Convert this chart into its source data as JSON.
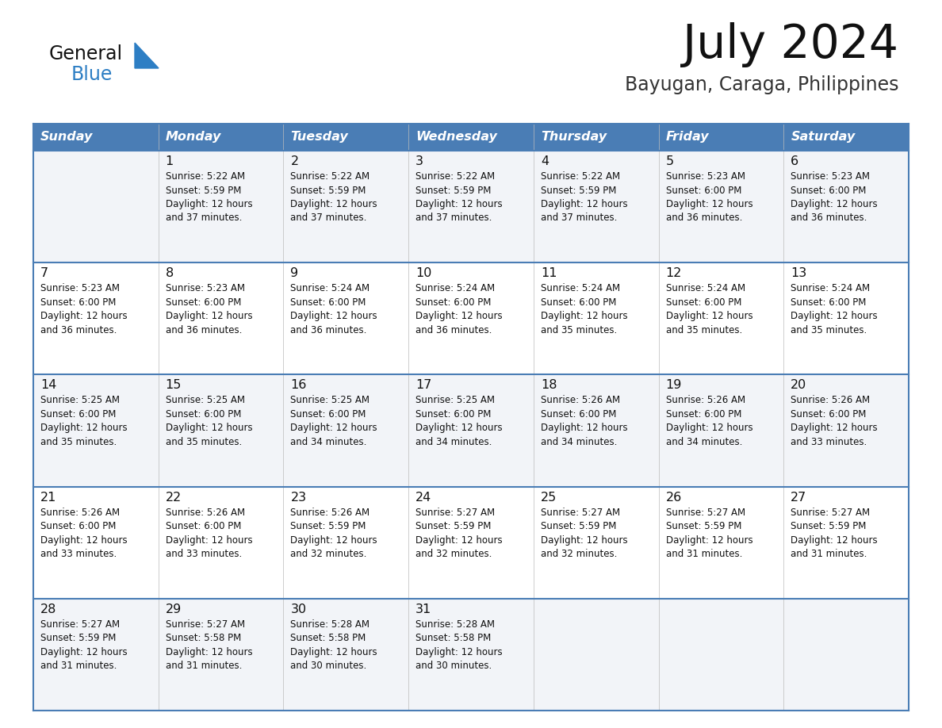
{
  "title": "July 2024",
  "subtitle": "Bayugan, Caraga, Philippines",
  "header_bg_color": "#4A7DB5",
  "header_text_color": "#FFFFFF",
  "cell_bg_light": "#F2F4F8",
  "cell_bg_white": "#FFFFFF",
  "day_names": [
    "Sunday",
    "Monday",
    "Tuesday",
    "Wednesday",
    "Thursday",
    "Friday",
    "Saturday"
  ],
  "title_color": "#111111",
  "subtitle_color": "#333333",
  "border_color": "#4A7DB5",
  "cell_text_color": "#111111",
  "day_num_color": "#111111",
  "logo_general_color": "#111111",
  "logo_blue_color": "#2D7EC4",
  "logo_triangle_color": "#2D7EC4",
  "calendar": [
    [
      "",
      "1",
      "2",
      "3",
      "4",
      "5",
      "6"
    ],
    [
      "7",
      "8",
      "9",
      "10",
      "11",
      "12",
      "13"
    ],
    [
      "14",
      "15",
      "16",
      "17",
      "18",
      "19",
      "20"
    ],
    [
      "21",
      "22",
      "23",
      "24",
      "25",
      "26",
      "27"
    ],
    [
      "28",
      "29",
      "30",
      "31",
      "",
      "",
      ""
    ]
  ],
  "cell_data": [
    [
      "",
      "Sunrise: 5:22 AM\nSunset: 5:59 PM\nDaylight: 12 hours\nand 37 minutes.",
      "Sunrise: 5:22 AM\nSunset: 5:59 PM\nDaylight: 12 hours\nand 37 minutes.",
      "Sunrise: 5:22 AM\nSunset: 5:59 PM\nDaylight: 12 hours\nand 37 minutes.",
      "Sunrise: 5:22 AM\nSunset: 5:59 PM\nDaylight: 12 hours\nand 37 minutes.",
      "Sunrise: 5:23 AM\nSunset: 6:00 PM\nDaylight: 12 hours\nand 36 minutes.",
      "Sunrise: 5:23 AM\nSunset: 6:00 PM\nDaylight: 12 hours\nand 36 minutes."
    ],
    [
      "Sunrise: 5:23 AM\nSunset: 6:00 PM\nDaylight: 12 hours\nand 36 minutes.",
      "Sunrise: 5:23 AM\nSunset: 6:00 PM\nDaylight: 12 hours\nand 36 minutes.",
      "Sunrise: 5:24 AM\nSunset: 6:00 PM\nDaylight: 12 hours\nand 36 minutes.",
      "Sunrise: 5:24 AM\nSunset: 6:00 PM\nDaylight: 12 hours\nand 36 minutes.",
      "Sunrise: 5:24 AM\nSunset: 6:00 PM\nDaylight: 12 hours\nand 35 minutes.",
      "Sunrise: 5:24 AM\nSunset: 6:00 PM\nDaylight: 12 hours\nand 35 minutes.",
      "Sunrise: 5:24 AM\nSunset: 6:00 PM\nDaylight: 12 hours\nand 35 minutes."
    ],
    [
      "Sunrise: 5:25 AM\nSunset: 6:00 PM\nDaylight: 12 hours\nand 35 minutes.",
      "Sunrise: 5:25 AM\nSunset: 6:00 PM\nDaylight: 12 hours\nand 35 minutes.",
      "Sunrise: 5:25 AM\nSunset: 6:00 PM\nDaylight: 12 hours\nand 34 minutes.",
      "Sunrise: 5:25 AM\nSunset: 6:00 PM\nDaylight: 12 hours\nand 34 minutes.",
      "Sunrise: 5:26 AM\nSunset: 6:00 PM\nDaylight: 12 hours\nand 34 minutes.",
      "Sunrise: 5:26 AM\nSunset: 6:00 PM\nDaylight: 12 hours\nand 34 minutes.",
      "Sunrise: 5:26 AM\nSunset: 6:00 PM\nDaylight: 12 hours\nand 33 minutes."
    ],
    [
      "Sunrise: 5:26 AM\nSunset: 6:00 PM\nDaylight: 12 hours\nand 33 minutes.",
      "Sunrise: 5:26 AM\nSunset: 6:00 PM\nDaylight: 12 hours\nand 33 minutes.",
      "Sunrise: 5:26 AM\nSunset: 5:59 PM\nDaylight: 12 hours\nand 32 minutes.",
      "Sunrise: 5:27 AM\nSunset: 5:59 PM\nDaylight: 12 hours\nand 32 minutes.",
      "Sunrise: 5:27 AM\nSunset: 5:59 PM\nDaylight: 12 hours\nand 32 minutes.",
      "Sunrise: 5:27 AM\nSunset: 5:59 PM\nDaylight: 12 hours\nand 31 minutes.",
      "Sunrise: 5:27 AM\nSunset: 5:59 PM\nDaylight: 12 hours\nand 31 minutes."
    ],
    [
      "Sunrise: 5:27 AM\nSunset: 5:59 PM\nDaylight: 12 hours\nand 31 minutes.",
      "Sunrise: 5:27 AM\nSunset: 5:58 PM\nDaylight: 12 hours\nand 31 minutes.",
      "Sunrise: 5:28 AM\nSunset: 5:58 PM\nDaylight: 12 hours\nand 30 minutes.",
      "Sunrise: 5:28 AM\nSunset: 5:58 PM\nDaylight: 12 hours\nand 30 minutes.",
      "",
      "",
      ""
    ]
  ]
}
